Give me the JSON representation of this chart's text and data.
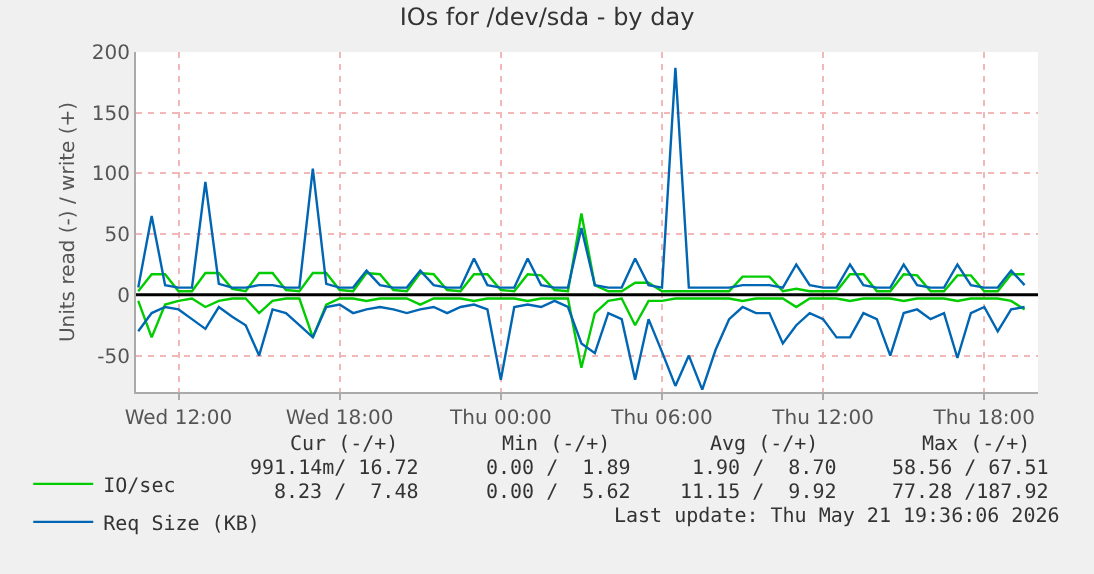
{
  "chart_data": {
    "type": "line",
    "title": "IOs for /dev/sda - by day",
    "ylabel": "Units read (-) / write (+)",
    "x": [
      "2026-05-20T10:30",
      "2026-05-20T11:00",
      "2026-05-20T11:30",
      "2026-05-20T12:00",
      "2026-05-20T12:30",
      "2026-05-20T13:00",
      "2026-05-20T13:30",
      "2026-05-20T14:00",
      "2026-05-20T14:30",
      "2026-05-20T15:00",
      "2026-05-20T15:30",
      "2026-05-20T16:00",
      "2026-05-20T16:30",
      "2026-05-20T17:00",
      "2026-05-20T17:30",
      "2026-05-20T18:00",
      "2026-05-20T18:30",
      "2026-05-20T19:00",
      "2026-05-20T19:30",
      "2026-05-20T20:00",
      "2026-05-20T20:30",
      "2026-05-20T21:00",
      "2026-05-20T21:30",
      "2026-05-20T22:00",
      "2026-05-20T22:30",
      "2026-05-20T23:00",
      "2026-05-20T23:30",
      "2026-05-21T00:00",
      "2026-05-21T00:30",
      "2026-05-21T01:00",
      "2026-05-21T01:30",
      "2026-05-21T02:00",
      "2026-05-21T02:30",
      "2026-05-21T03:00",
      "2026-05-21T03:30",
      "2026-05-21T04:00",
      "2026-05-21T04:30",
      "2026-05-21T05:00",
      "2026-05-21T05:30",
      "2026-05-21T06:00",
      "2026-05-21T06:30",
      "2026-05-21T07:00",
      "2026-05-21T07:30",
      "2026-05-21T08:00",
      "2026-05-21T08:30",
      "2026-05-21T09:00",
      "2026-05-21T09:30",
      "2026-05-21T10:00",
      "2026-05-21T10:30",
      "2026-05-21T11:00",
      "2026-05-21T11:30",
      "2026-05-21T12:00",
      "2026-05-21T12:30",
      "2026-05-21T13:00",
      "2026-05-21T13:30",
      "2026-05-21T14:00",
      "2026-05-21T14:30",
      "2026-05-21T15:00",
      "2026-05-21T15:30",
      "2026-05-21T16:00",
      "2026-05-21T16:30",
      "2026-05-21T17:00",
      "2026-05-21T17:30",
      "2026-05-21T18:00",
      "2026-05-21T18:30",
      "2026-05-21T19:00",
      "2026-05-21T19:30"
    ],
    "series": [
      {
        "color": "#00cc00",
        "values": [
          -5,
          -35,
          -8,
          -5,
          -3,
          -10,
          -5,
          -3,
          -3,
          -15,
          -5,
          -3,
          -3,
          -35,
          -8,
          -3,
          -3,
          -5,
          -3,
          -3,
          -3,
          -8,
          -3,
          -3,
          -3,
          -5,
          -3,
          -3,
          -3,
          -5,
          -3,
          -3,
          -3,
          -60,
          -15,
          -5,
          -3,
          -25,
          -5,
          -5,
          -3,
          -3,
          -3,
          -3,
          -3,
          -5,
          -3,
          -3,
          -3,
          -10,
          -3,
          -3,
          -3,
          -5,
          -3,
          -3,
          -3,
          -5,
          -3,
          -3,
          -3,
          -5,
          -3,
          -3,
          -3,
          -5,
          -12
        ]
      },
      {
        "name": "IO/sec",
        "color": "#00cc00",
        "values": [
          3,
          17,
          17,
          3,
          3,
          18,
          18,
          5,
          3,
          18,
          18,
          4,
          3,
          18,
          18,
          4,
          3,
          18,
          17,
          4,
          3,
          18,
          17,
          4,
          3,
          17,
          17,
          4,
          3,
          17,
          16,
          4,
          3,
          67,
          8,
          3,
          3,
          10,
          10,
          3,
          3,
          3,
          3,
          3,
          3,
          15,
          15,
          15,
          3,
          5,
          3,
          3,
          3,
          17,
          17,
          3,
          3,
          17,
          16,
          3,
          3,
          16,
          16,
          3,
          3,
          17,
          17
        ]
      },
      {
        "color": "#0066b3",
        "values": [
          -30,
          -15,
          -10,
          -12,
          -20,
          -28,
          -10,
          -18,
          -25,
          -50,
          -12,
          -15,
          -25,
          -35,
          -10,
          -8,
          -15,
          -12,
          -10,
          -12,
          -15,
          -12,
          -10,
          -15,
          -10,
          -8,
          -12,
          -70,
          -10,
          -8,
          -10,
          -5,
          -10,
          -40,
          -48,
          -15,
          -20,
          -70,
          -20,
          -47,
          -75,
          -50,
          -78,
          -45,
          -20,
          -10,
          -15,
          -15,
          -40,
          -25,
          -15,
          -20,
          -35,
          -35,
          -15,
          -20,
          -50,
          -15,
          -12,
          -20,
          -15,
          -52,
          -15,
          -10,
          -30,
          -12,
          -10
        ]
      },
      {
        "name": "Req Size (KB)",
        "color": "#0066b3",
        "values": [
          6,
          65,
          8,
          6,
          6,
          93,
          9,
          6,
          6,
          8,
          8,
          6,
          6,
          104,
          9,
          6,
          6,
          20,
          8,
          6,
          6,
          20,
          8,
          6,
          6,
          30,
          8,
          6,
          6,
          30,
          8,
          6,
          6,
          55,
          8,
          6,
          6,
          30,
          8,
          6,
          187,
          6,
          6,
          6,
          6,
          8,
          8,
          8,
          6,
          25,
          8,
          6,
          6,
          25,
          8,
          6,
          6,
          25,
          8,
          6,
          6,
          25,
          8,
          6,
          6,
          20,
          8
        ]
      }
    ],
    "xlim": [
      "2026-05-20T10:25",
      "2026-05-21T20:00"
    ],
    "xticks": [
      {
        "value": "2026-05-20T12:00",
        "label": "Wed 12:00"
      },
      {
        "value": "2026-05-20T18:00",
        "label": "Wed 18:00"
      },
      {
        "value": "2026-05-21T00:00",
        "label": "Thu 00:00"
      },
      {
        "value": "2026-05-21T06:00",
        "label": "Thu 06:00"
      },
      {
        "value": "2026-05-21T12:00",
        "label": "Thu 12:00"
      },
      {
        "value": "2026-05-21T18:00",
        "label": "Thu 18:00"
      }
    ],
    "ylim": [
      -80,
      200
    ],
    "yticks": [
      -50,
      0,
      50,
      100,
      150,
      200
    ],
    "ref_lines": [
      {
        "axis": "y",
        "value": 0,
        "color": "#000000"
      }
    ],
    "grid": true,
    "legend": "bottom left",
    "marker": "none",
    "line_style": "solid",
    "annotations": [
      "Cur (-/+)",
      "Min (-/+)",
      "Avg (-/+)",
      "Max (-/+)",
      "991.14m/ 16.72",
      "0.00 /  1.89",
      "1.90 /  8.70",
      "58.56 / 67.51",
      "8.23 /  7.48",
      "0.00 /  5.62",
      "11.15 /  9.92",
      "77.28 /187.92",
      "Last update: Thu May 21 19:36:06 2026"
    ]
  }
}
